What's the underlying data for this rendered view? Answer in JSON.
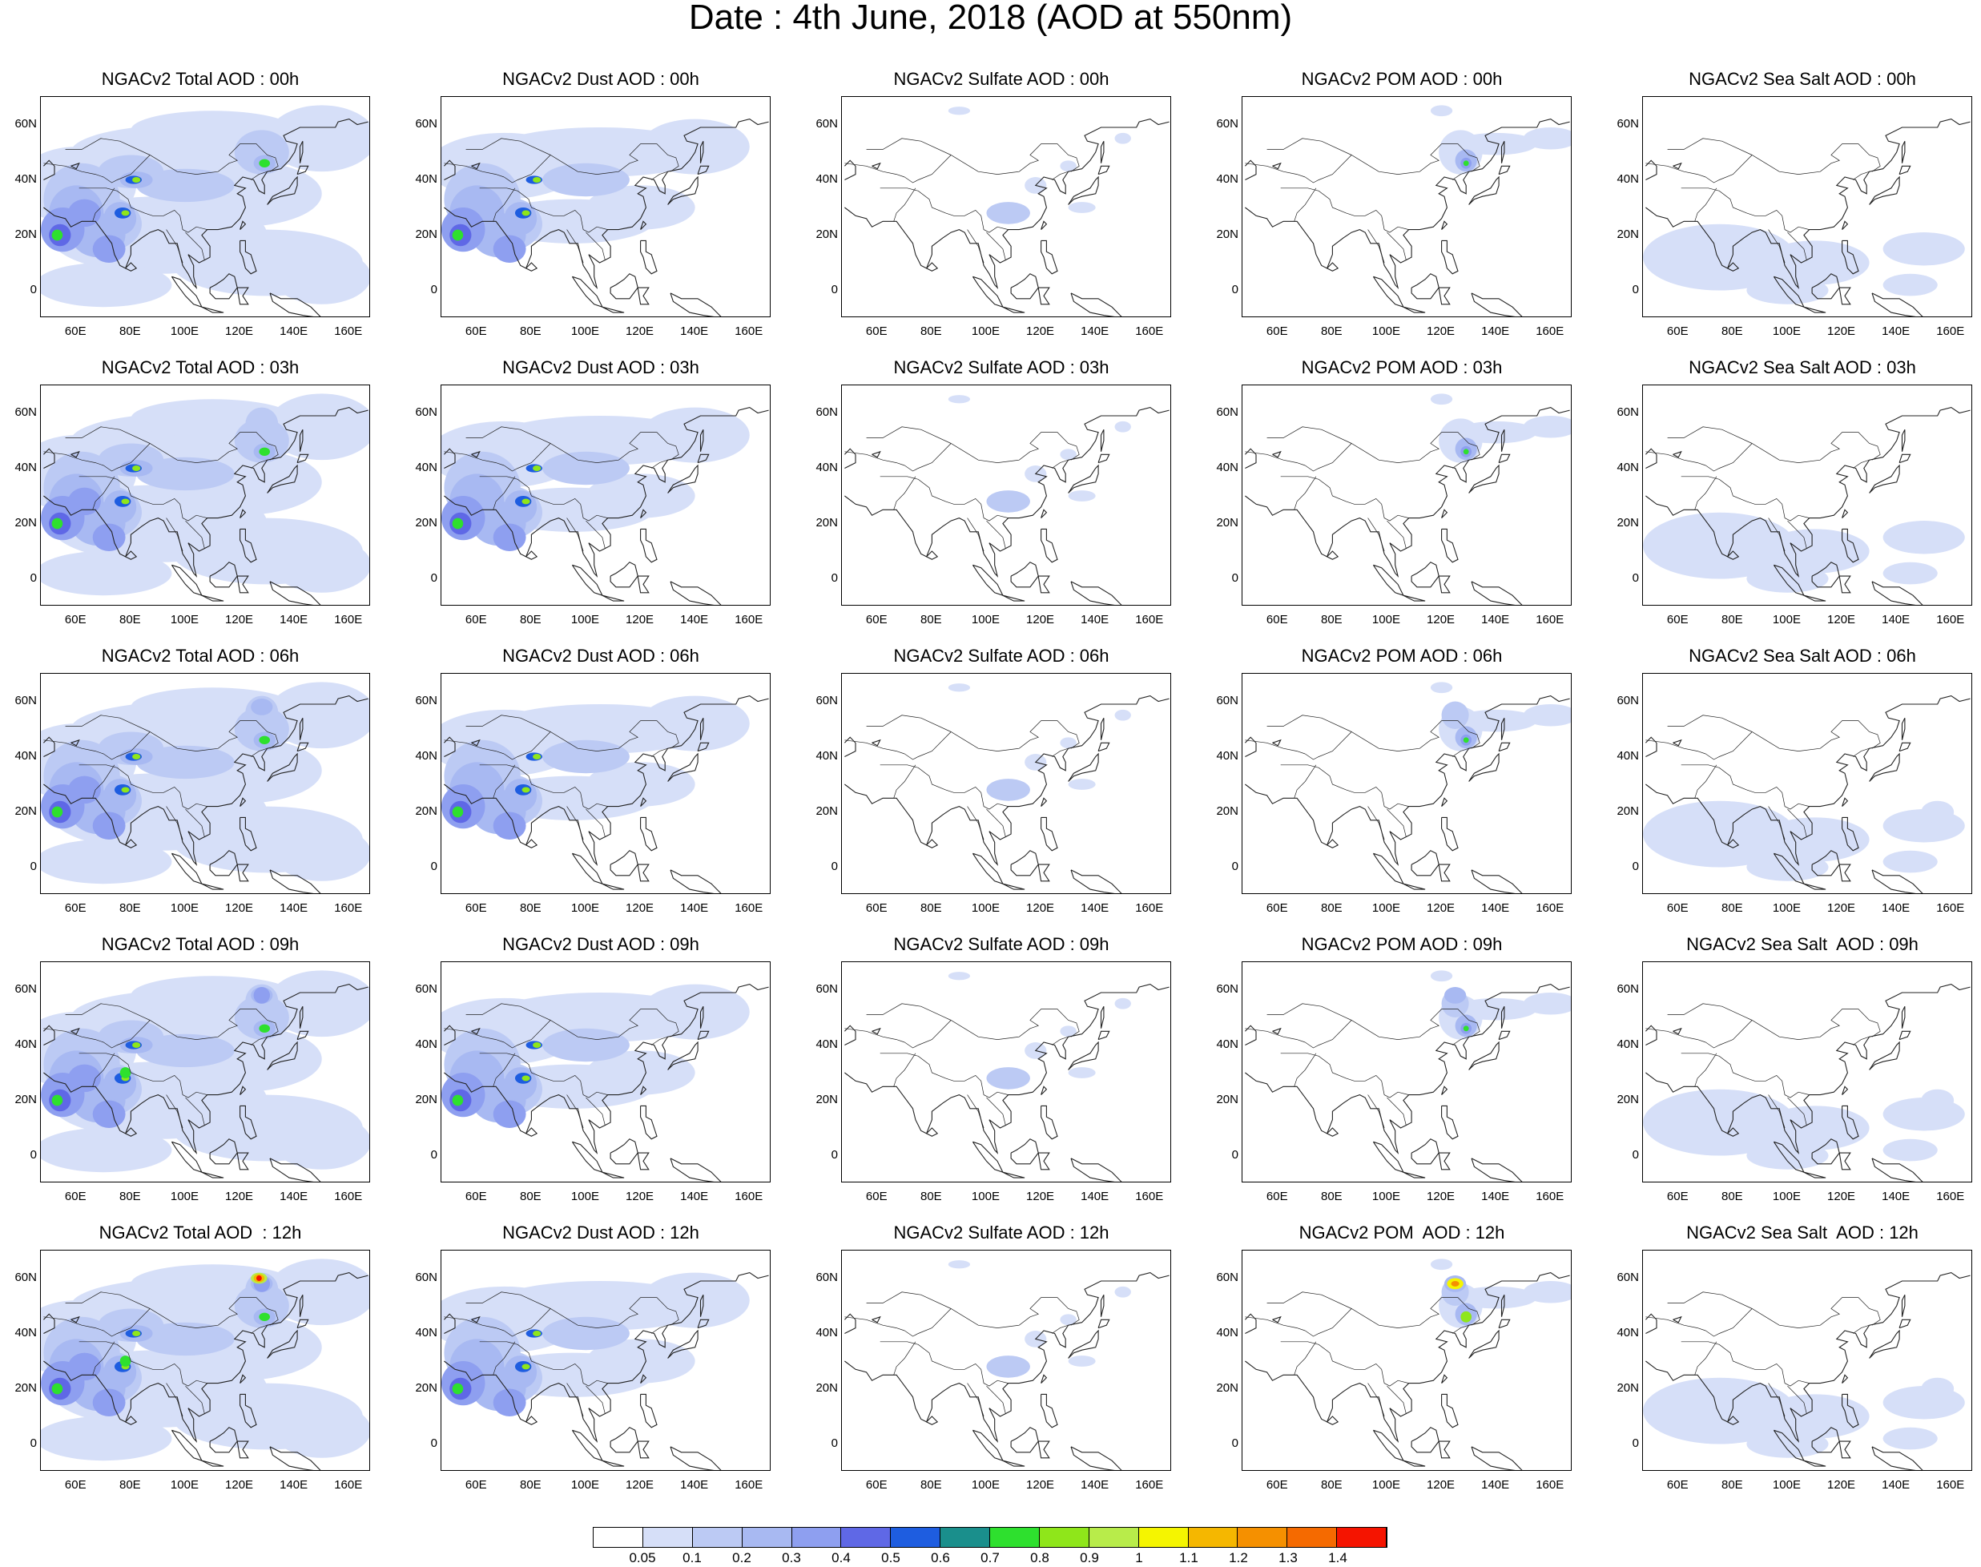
{
  "title": "Date : 4th June, 2018 (AOD at 550nm)",
  "rows": [
    {
      "hour": "00h",
      "titles": [
        "NGACv2 Total AOD : 00h",
        "NGACv2 Dust AOD : 00h",
        "NGACv2 Sulfate AOD : 00h",
        "NGACv2 POM AOD : 00h",
        "NGACv2 Sea Salt AOD : 00h"
      ]
    },
    {
      "hour": "03h",
      "titles": [
        "NGACv2 Total AOD : 03h",
        "NGACv2 Dust AOD : 03h",
        "NGACv2 Sulfate AOD : 03h",
        "NGACv2 POM AOD : 03h",
        "NGACv2 Sea Salt AOD : 03h"
      ]
    },
    {
      "hour": "06h",
      "titles": [
        "NGACv2 Total AOD : 06h",
        "NGACv2 Dust AOD : 06h",
        "NGACv2 Sulfate AOD : 06h",
        "NGACv2 POM AOD : 06h",
        "NGACv2 Sea Salt AOD : 06h"
      ]
    },
    {
      "hour": "09h",
      "titles": [
        "NGACv2 Total AOD : 09h",
        "NGACv2 Dust AOD : 09h",
        "NGACv2 Sulfate AOD : 09h",
        "NGACv2 POM AOD : 09h",
        "NGACv2 Sea Salt  AOD : 09h"
      ]
    },
    {
      "hour": "12h",
      "titles": [
        "NGACv2 Total AOD  : 12h",
        "NGACv2 Dust AOD : 12h",
        "NGACv2 Sulfate AOD : 12h",
        "NGACv2 POM  AOD : 12h",
        "NGACv2 Sea Salt  AOD : 12h"
      ]
    }
  ],
  "species": [
    "total",
    "dust",
    "sulfate",
    "pom",
    "seasalt"
  ],
  "axes": {
    "lon_ticks": [
      "60E",
      "80E",
      "100E",
      "120E",
      "140E",
      "160E"
    ],
    "lat_ticks": [
      "60N",
      "40N",
      "20N",
      "0"
    ],
    "lon_range_deg": [
      47,
      168
    ],
    "lat_range_deg": [
      -10,
      70
    ]
  },
  "colorbar": {
    "labels": [
      "0.05",
      "0.1",
      "0.2",
      "0.3",
      "0.4",
      "0.5",
      "0.6",
      "0.7",
      "0.8",
      "0.9",
      "1",
      "1.1",
      "1.2",
      "1.3",
      "1.4"
    ],
    "colors": [
      "#ffffff",
      "#d6dff8",
      "#bccaf4",
      "#a8b9f2",
      "#8e9ff0",
      "#5f68e6",
      "#1e5de0",
      "#1a8f8c",
      "#2ee02e",
      "#8fe61a",
      "#b8ec4a",
      "#f5f500",
      "#f5b700",
      "#f59000",
      "#f56a00",
      "#f51400"
    ]
  }
}
